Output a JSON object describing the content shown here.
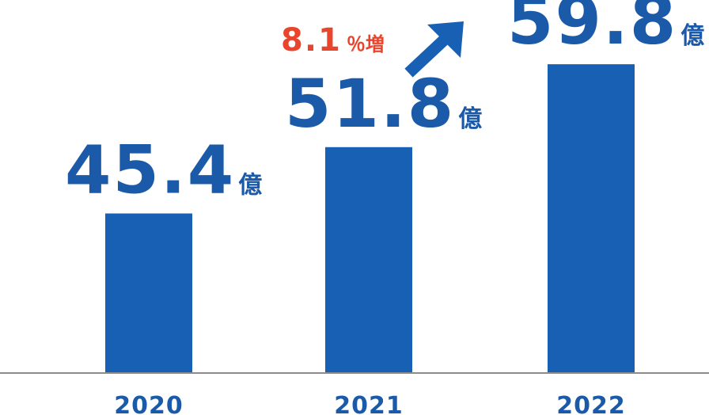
{
  "chart_data": {
    "type": "bar",
    "categories": [
      "2020",
      "2021",
      "2022"
    ],
    "values": [
      45.4,
      51.8,
      59.8
    ],
    "data_labels": [
      "45.4",
      "51.8",
      "59.8"
    ],
    "unit_label": "億",
    "title": "",
    "xlabel": "",
    "ylabel": "",
    "ylim": [
      30,
      66
    ],
    "grid": false,
    "annotation": {
      "value": "8.1",
      "suffix": "％増",
      "icon": "arrow-up-right-icon"
    }
  },
  "colors": {
    "bar": "#1860b4",
    "label": "#1a5aa8",
    "tick": "#1a5aa8",
    "axis": "#8c8c8c",
    "annotation": "#e8452c",
    "arrow": "#1860b4"
  }
}
